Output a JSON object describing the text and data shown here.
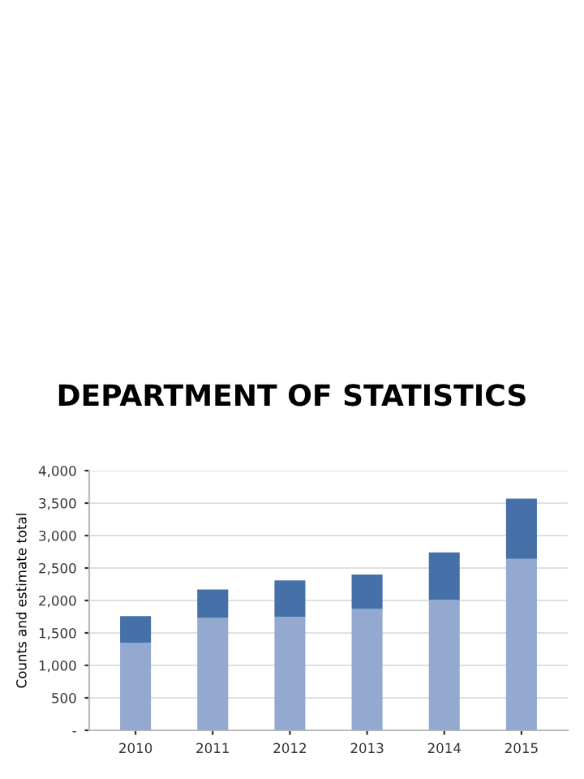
{
  "chart_data": {
    "type": "bar",
    "title": "DEPARTMENT OF STATISTICS",
    "ylabel": "Counts and estimate total",
    "categories": [
      "2010",
      "2011",
      "2012",
      "2013",
      "2014",
      "2015"
    ],
    "stacked": true,
    "series": [
      {
        "color": "#94a9d0",
        "values": [
          1350,
          1730,
          1750,
          1870,
          2010,
          2640
        ]
      },
      {
        "color": "#4571a8",
        "values": [
          410,
          440,
          560,
          530,
          730,
          930
        ]
      }
    ],
    "ylim": [
      0,
      4000
    ],
    "yticks": [
      {
        "value": 0,
        "label": "-"
      },
      {
        "value": 500,
        "label": "500"
      },
      {
        "value": 1000,
        "label": "1,000"
      },
      {
        "value": 1500,
        "label": "1,500"
      },
      {
        "value": 2000,
        "label": "2,000"
      },
      {
        "value": 2500,
        "label": "2,500"
      },
      {
        "value": 3000,
        "label": "3,000"
      },
      {
        "value": 3500,
        "label": "3,500"
      },
      {
        "value": 4000,
        "label": "4,000"
      }
    ],
    "grid": "y"
  }
}
